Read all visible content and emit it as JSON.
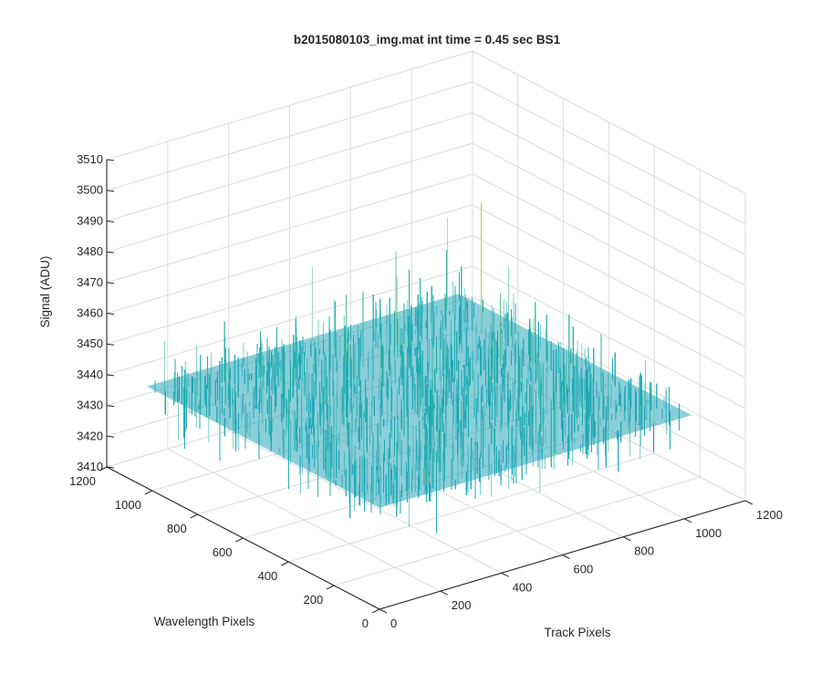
{
  "chart_data": {
    "type": "surface",
    "title": "b2015080103_img.mat int time = 0.45 sec   BS1",
    "xlabel": "Track Pixels",
    "ylabel": "Wavelength Pixels",
    "zlabel": "Signal (ADU)",
    "xlim": [
      0,
      1200
    ],
    "ylim": [
      0,
      1200
    ],
    "zlim": [
      3410,
      3510
    ],
    "x_ticks": [
      "0",
      "200",
      "400",
      "600",
      "800",
      "1000",
      "1200"
    ],
    "y_ticks": [
      "0",
      "200",
      "400",
      "600",
      "800",
      "1000",
      "1200"
    ],
    "z_ticks": [
      "3410",
      "3420",
      "3430",
      "3440",
      "3450",
      "3460",
      "3470",
      "3480",
      "3490",
      "3500",
      "3510"
    ],
    "grid": true,
    "surface": {
      "x_range": [
        0,
        1024
      ],
      "y_range": [
        0,
        1024
      ],
      "mean_signal": 3443,
      "typical_range": [
        3425,
        3470
      ],
      "extreme_range": [
        3415,
        3495
      ],
      "description_colormap": "parula"
    },
    "colors": {
      "low": "#1a8fd6",
      "mid": "#21b3a8",
      "high": "#b8c96a",
      "peak": "#e8d84a",
      "grid": "#dcdcdc",
      "axis": "#262626"
    }
  }
}
